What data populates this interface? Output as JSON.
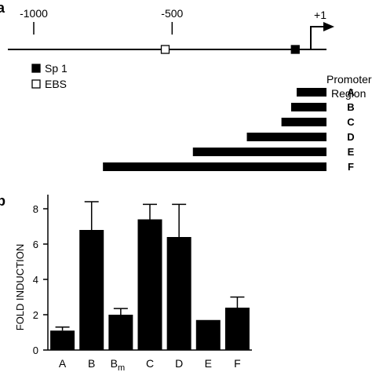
{
  "panel_a": {
    "label": "a",
    "ticks": [
      {
        "label": "-1000",
        "pos": -1000
      },
      {
        "label": "-500",
        "pos": -500
      },
      {
        "label": "+1",
        "pos": 1
      }
    ],
    "elements": [
      {
        "name": "EBS",
        "pos": -525,
        "fill": "#ffffff"
      },
      {
        "name": "Sp 1",
        "pos": -55,
        "fill": "#000000"
      }
    ],
    "legend": [
      {
        "label": "Sp 1",
        "fill": "#000000"
      },
      {
        "label": "EBS",
        "fill": "#ffffff"
      }
    ],
    "region_header": [
      "Promoter",
      "Region"
    ],
    "regions": [
      {
        "label": "A",
        "start": -50
      },
      {
        "label": "B",
        "start": -70
      },
      {
        "label": "C",
        "start": -105
      },
      {
        "label": "D",
        "start": -230
      },
      {
        "label": "E",
        "start": -425
      },
      {
        "label": "F",
        "start": -750
      }
    ]
  },
  "panel_b": {
    "label": "b"
  },
  "chart_data": {
    "type": "bar",
    "categories": [
      "A",
      "B",
      "B_m",
      "C",
      "D",
      "E",
      "F"
    ],
    "category_labels": [
      {
        "main": "A",
        "sub": ""
      },
      {
        "main": "B",
        "sub": ""
      },
      {
        "main": "B",
        "sub": "m"
      },
      {
        "main": "C",
        "sub": ""
      },
      {
        "main": "D",
        "sub": ""
      },
      {
        "main": "E",
        "sub": ""
      },
      {
        "main": "F",
        "sub": ""
      }
    ],
    "values": [
      1.1,
      6.8,
      2.0,
      7.4,
      6.4,
      1.7,
      2.4
    ],
    "errors": [
      0.2,
      1.6,
      0.35,
      0.85,
      1.85,
      0.0,
      0.6
    ],
    "ylabel": "FOLD INDUCTION",
    "xlabel": "",
    "ylim": [
      0,
      8.8
    ],
    "yticks": [
      "0",
      "2",
      "4",
      "6",
      "8"
    ],
    "grid": false,
    "bar_color": "#000000"
  }
}
